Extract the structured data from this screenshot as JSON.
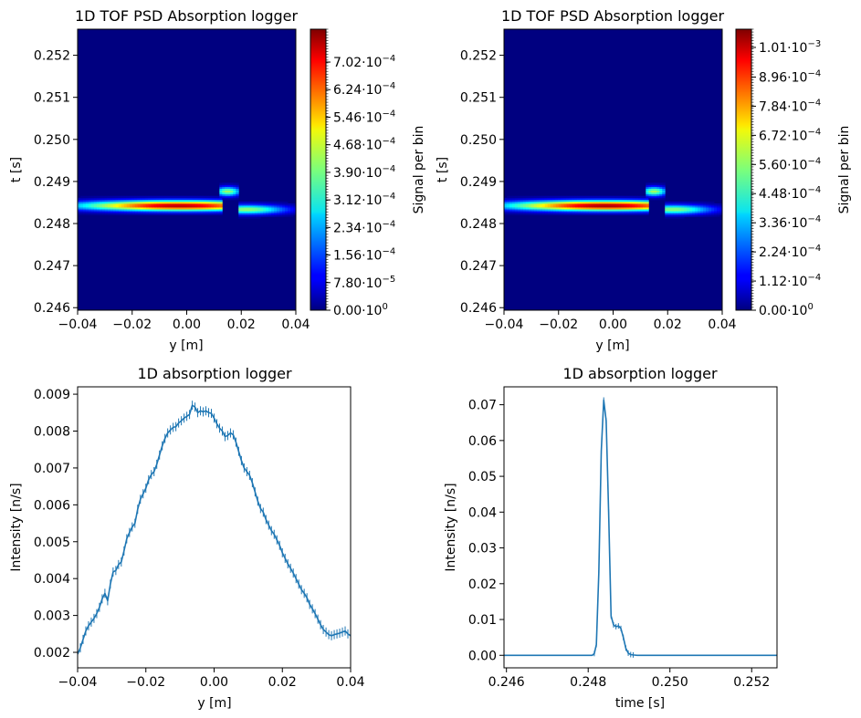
{
  "chart_data": [
    {
      "type": "heatmap",
      "title": "1D TOF PSD Absorption logger",
      "xlabel": "y [m]",
      "ylabel": "t [s]",
      "xlim": [
        -0.04,
        0.04
      ],
      "ylim": [
        0.24594,
        0.25262
      ],
      "xticks": [
        "−0.04",
        "−0.02",
        "0.00",
        "0.02",
        "0.04"
      ],
      "xtick_values": [
        -0.04,
        -0.02,
        0,
        0.02,
        0.04
      ],
      "yticks": [
        "0.246",
        "0.247",
        "0.248",
        "0.249",
        "0.250",
        "0.251",
        "0.252"
      ],
      "ytick_values": [
        0.246,
        0.247,
        0.248,
        0.249,
        0.25,
        0.251,
        0.252
      ],
      "colorbar": {
        "label": "Signal per bin",
        "max": 0.000795,
        "ticks": [
          {
            "value": 0,
            "mant": "0.00",
            "exp": "0"
          },
          {
            "value": 7.8e-05,
            "mant": "7.80",
            "exp": "−5"
          },
          {
            "value": 0.000156,
            "mant": "1.56",
            "exp": "−4"
          },
          {
            "value": 0.000234,
            "mant": "2.34",
            "exp": "−4"
          },
          {
            "value": 0.000312,
            "mant": "3.12",
            "exp": "−4"
          },
          {
            "value": 0.00039,
            "mant": "3.90",
            "exp": "−4"
          },
          {
            "value": 0.000468,
            "mant": "4.68",
            "exp": "−4"
          },
          {
            "value": 0.000546,
            "mant": "5.46",
            "exp": "−4"
          },
          {
            "value": 0.000624,
            "mant": "6.24",
            "exp": "−4"
          },
          {
            "value": 0.000702,
            "mant": "7.02",
            "exp": "−4"
          }
        ]
      },
      "bands": [
        {
          "y0": -0.04,
          "y1": 0.013,
          "t_center": 0.24843,
          "t_width": 0.00012,
          "t_slope": -0.0011,
          "peak_y": -0.003,
          "peak_value": 0.00076
        },
        {
          "y0": 0.012,
          "y1": 0.019,
          "t_center": 0.24877,
          "t_width": 0.00011,
          "t_slope": 0,
          "peak_y": 0.015,
          "peak_value": 0.00042
        },
        {
          "y0": 0.019,
          "y1": 0.04,
          "t_center": 0.24834,
          "t_width": 0.00011,
          "t_slope": 0,
          "peak_y": 0.022,
          "peak_value": 0.00042
        }
      ]
    },
    {
      "type": "heatmap",
      "title": "1D TOF PSD Absorption logger",
      "xlabel": "y [m]",
      "ylabel": "t [s]",
      "xlim": [
        -0.04,
        0.04
      ],
      "ylim": [
        0.24594,
        0.25262
      ],
      "xticks": [
        "−0.04",
        "−0.02",
        "0.00",
        "0.02",
        "0.04"
      ],
      "xtick_values": [
        -0.04,
        -0.02,
        0,
        0.02,
        0.04
      ],
      "yticks": [
        "0.246",
        "0.247",
        "0.248",
        "0.249",
        "0.250",
        "0.251",
        "0.252"
      ],
      "ytick_values": [
        0.246,
        0.247,
        0.248,
        0.249,
        0.25,
        0.251,
        0.252
      ],
      "colorbar": {
        "label": "Signal per bin",
        "max": 0.00108,
        "ticks": [
          {
            "value": 0,
            "mant": "0.00",
            "exp": "0"
          },
          {
            "value": 0.000112,
            "mant": "1.12",
            "exp": "−4"
          },
          {
            "value": 0.000224,
            "mant": "2.24",
            "exp": "−4"
          },
          {
            "value": 0.000336,
            "mant": "3.36",
            "exp": "−4"
          },
          {
            "value": 0.000448,
            "mant": "4.48",
            "exp": "−4"
          },
          {
            "value": 0.00056,
            "mant": "5.60",
            "exp": "−4"
          },
          {
            "value": 0.000672,
            "mant": "6.72",
            "exp": "−4"
          },
          {
            "value": 0.000784,
            "mant": "7.84",
            "exp": "−4"
          },
          {
            "value": 0.000896,
            "mant": "8.96",
            "exp": "−4"
          },
          {
            "value": 0.00101,
            "mant": "1.01",
            "exp": "−3"
          }
        ]
      },
      "bands": [
        {
          "y0": -0.04,
          "y1": 0.013,
          "t_center": 0.24843,
          "t_width": 0.00012,
          "t_slope": -0.0011,
          "peak_y": -0.003,
          "peak_value": 0.00105
        },
        {
          "y0": 0.012,
          "y1": 0.019,
          "t_center": 0.24877,
          "t_width": 0.00011,
          "t_slope": 0,
          "peak_y": 0.015,
          "peak_value": 0.00058
        },
        {
          "y0": 0.019,
          "y1": 0.04,
          "t_center": 0.24834,
          "t_width": 0.00011,
          "t_slope": 0,
          "peak_y": 0.022,
          "peak_value": 0.00056
        }
      ]
    },
    {
      "type": "line",
      "title": "1D absorption logger",
      "xlabel": "y [m]",
      "ylabel": "Intensity [n/s]",
      "xlim": [
        -0.04,
        0.04
      ],
      "ylim": [
        0.00158,
        0.0092
      ],
      "xticks": [
        "−0.04",
        "−0.02",
        "0.00",
        "0.02",
        "0.04"
      ],
      "xtick_values": [
        -0.04,
        -0.02,
        0,
        0.02,
        0.04
      ],
      "yticks": [
        "0.002",
        "0.003",
        "0.004",
        "0.005",
        "0.006",
        "0.007",
        "0.008",
        "0.009"
      ],
      "ytick_values": [
        0.002,
        0.003,
        0.004,
        0.005,
        0.006,
        0.007,
        0.008,
        0.009
      ],
      "color": "#1f77b4",
      "x": [
        -0.04,
        -0.0392,
        -0.0384,
        -0.0376,
        -0.0368,
        -0.036,
        -0.0352,
        -0.0344,
        -0.0336,
        -0.0328,
        -0.032,
        -0.0312,
        -0.0304,
        -0.0296,
        -0.0288,
        -0.028,
        -0.0272,
        -0.0264,
        -0.0256,
        -0.0248,
        -0.024,
        -0.0232,
        -0.0224,
        -0.0216,
        -0.0208,
        -0.02,
        -0.0192,
        -0.0184,
        -0.0176,
        -0.0168,
        -0.016,
        -0.0152,
        -0.0144,
        -0.0136,
        -0.0128,
        -0.012,
        -0.0112,
        -0.0104,
        -0.0096,
        -0.0088,
        -0.008,
        -0.0072,
        -0.0064,
        -0.0056,
        -0.0048,
        -0.004,
        -0.0032,
        -0.0024,
        -0.0016,
        -0.0008,
        0.0,
        0.0008,
        0.0016,
        0.0024,
        0.0032,
        0.004,
        0.0048,
        0.0056,
        0.0064,
        0.0072,
        0.008,
        0.0088,
        0.0096,
        0.0104,
        0.0112,
        0.012,
        0.0128,
        0.0136,
        0.0144,
        0.0152,
        0.016,
        0.0168,
        0.0176,
        0.0184,
        0.0192,
        0.02,
        0.0208,
        0.0216,
        0.0224,
        0.0232,
        0.024,
        0.0248,
        0.0256,
        0.0264,
        0.0272,
        0.028,
        0.0288,
        0.0296,
        0.0304,
        0.0312,
        0.032,
        0.0328,
        0.0336,
        0.0344,
        0.0352,
        0.036,
        0.0368,
        0.0376,
        0.0384,
        0.0392,
        0.04
      ],
      "y": [
        0.00195,
        0.00212,
        0.00235,
        0.00258,
        0.00272,
        0.00282,
        0.00292,
        0.00305,
        0.00322,
        0.00345,
        0.0036,
        0.0034,
        0.00385,
        0.00418,
        0.00422,
        0.00438,
        0.00445,
        0.00475,
        0.00508,
        0.00525,
        0.0054,
        0.0055,
        0.00588,
        0.00615,
        0.0063,
        0.00645,
        0.00668,
        0.00682,
        0.0069,
        0.0071,
        0.00735,
        0.0076,
        0.0078,
        0.00795,
        0.00803,
        0.0081,
        0.00812,
        0.00822,
        0.00828,
        0.00835,
        0.0084,
        0.00845,
        0.0087,
        0.00865,
        0.0085,
        0.00855,
        0.00852,
        0.00855,
        0.0085,
        0.00848,
        0.00835,
        0.0082,
        0.00808,
        0.008,
        0.00785,
        0.00788,
        0.00795,
        0.0079,
        0.0077,
        0.00745,
        0.0072,
        0.007,
        0.0069,
        0.0068,
        0.0066,
        0.00635,
        0.0061,
        0.0059,
        0.0058,
        0.0056,
        0.00545,
        0.0053,
        0.0052,
        0.00505,
        0.0049,
        0.0047,
        0.00455,
        0.0044,
        0.00428,
        0.00415,
        0.004,
        0.00385,
        0.0037,
        0.0036,
        0.00348,
        0.0033,
        0.00318,
        0.00305,
        0.0029,
        0.00275,
        0.00262,
        0.00255,
        0.00248,
        0.00245,
        0.00248,
        0.0025,
        0.00252,
        0.00255,
        0.00258,
        0.0025,
        0.00245
      ]
    },
    {
      "type": "line",
      "title": "1D absorption logger",
      "xlabel": "time [s]",
      "ylabel": "Intensity [n/s]",
      "xlim": [
        0.24594,
        0.25262
      ],
      "ylim": [
        -0.0035,
        0.075
      ],
      "xticks": [
        "0.246",
        "0.248",
        "0.250",
        "0.252"
      ],
      "xtick_values": [
        0.246,
        0.248,
        0.25,
        0.252
      ],
      "yticks": [
        "0.00",
        "0.01",
        "0.02",
        "0.03",
        "0.04",
        "0.05",
        "0.06",
        "0.07"
      ],
      "ytick_values": [
        0,
        0.01,
        0.02,
        0.03,
        0.04,
        0.05,
        0.06,
        0.07
      ],
      "color": "#1f77b4",
      "x": [
        0.24594,
        0.2481,
        0.24815,
        0.2482,
        0.24826,
        0.24832,
        0.24838,
        0.24844,
        0.2485,
        0.24856,
        0.24862,
        0.24868,
        0.24874,
        0.2488,
        0.24886,
        0.24892,
        0.24898,
        0.24904,
        0.2491,
        0.2492,
        0.25262
      ],
      "y": [
        0.0,
        0.0,
        0.0005,
        0.003,
        0.023,
        0.057,
        0.0713,
        0.0655,
        0.04,
        0.011,
        0.0085,
        0.008,
        0.0082,
        0.0075,
        0.005,
        0.002,
        0.0006,
        0.0002,
        0.0001,
        0.0,
        0.0
      ]
    }
  ]
}
